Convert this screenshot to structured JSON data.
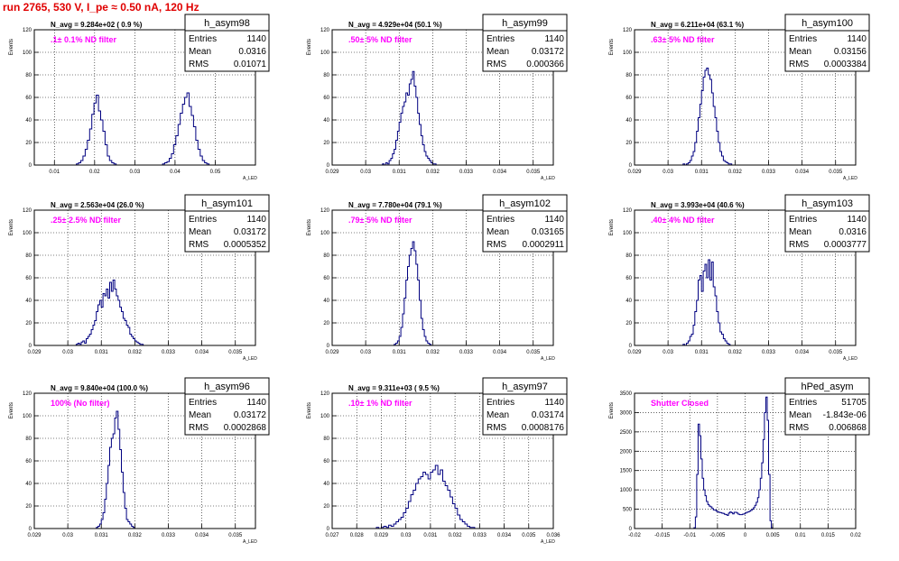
{
  "title": "run 2765,   530 V, I_pe ≈ 0.50 nA, 120 Hz",
  "colors": {
    "hist": "#000080",
    "filter_label": "#ff00ff",
    "title": "#e00000",
    "grid": "#000000"
  },
  "chart_data": [
    {
      "type": "bar",
      "hist_name": "h_asym98",
      "navg": "N_avg = 9.284e+02 ( 0.9 %)",
      "filter": ".1± 0.1% ND filter",
      "stats": {
        "entries": "1140",
        "mean": "0.0316",
        "rms": "0.01071"
      },
      "ylabel": "Events",
      "xlabel": "A_LED",
      "xlim": [
        0.005,
        0.06
      ],
      "ylim": [
        0,
        120
      ],
      "xticks": [
        "0.01",
        "0.02",
        "0.03",
        "0.04",
        "0.05"
      ],
      "xtick_values": [
        0.01,
        0.02,
        0.03,
        0.04,
        0.05
      ],
      "yticks": [
        "0",
        "20",
        "40",
        "60",
        "80",
        "100",
        "120"
      ],
      "bins": {
        "start": 0.005,
        "width": 0.00055,
        "values": [
          0,
          0,
          0,
          0,
          0,
          0,
          0,
          0,
          0,
          0,
          0,
          0,
          0,
          0,
          0,
          0,
          0,
          0,
          0,
          1,
          2,
          4,
          8,
          14,
          22,
          32,
          45,
          55,
          62,
          48,
          40,
          30,
          18,
          8,
          4,
          2,
          1,
          0,
          0,
          0,
          0,
          0,
          0,
          0,
          0,
          0,
          0,
          0,
          0,
          0,
          0,
          0,
          0,
          0,
          0,
          0,
          0,
          0,
          1,
          2,
          3,
          6,
          10,
          18,
          26,
          36,
          46,
          54,
          60,
          64,
          52,
          44,
          34,
          22,
          14,
          8,
          4,
          2,
          1,
          0,
          0,
          0,
          0,
          0,
          0,
          0,
          0,
          0,
          0,
          0,
          0,
          0,
          0,
          0,
          0,
          0,
          0,
          0,
          0,
          0
        ]
      }
    },
    {
      "type": "bar",
      "hist_name": "h_asym99",
      "navg": "N_avg = 4.929e+04 (50.1 %)",
      "filter": ".50± 5% ND filter",
      "stats": {
        "entries": "1140",
        "mean": "0.03172",
        "rms": "0.000366"
      },
      "ylabel": "Events",
      "xlabel": "A_LED",
      "xlim": [
        0.029,
        0.0356
      ],
      "ylim": [
        0,
        120
      ],
      "xticks": [
        "0.029",
        "0.03",
        "0.031",
        "0.032",
        "0.033",
        "0.034",
        "0.035"
      ],
      "xtick_values": [
        0.029,
        0.03,
        0.031,
        0.032,
        0.033,
        0.034,
        0.035
      ],
      "yticks": [
        "0",
        "20",
        "40",
        "60",
        "80",
        "100",
        "120"
      ],
      "bins": {
        "start": 0.0304,
        "width": 5e-05,
        "values": [
          0,
          0,
          1,
          0,
          2,
          1,
          4,
          6,
          10,
          14,
          22,
          30,
          38,
          46,
          52,
          56,
          64,
          62,
          72,
          76,
          83,
          70,
          60,
          46,
          36,
          26,
          18,
          12,
          8,
          6,
          4,
          2,
          1,
          1,
          0,
          0,
          0,
          0,
          0,
          0
        ]
      }
    },
    {
      "type": "bar",
      "hist_name": "h_asym100",
      "navg": "N_avg = 6.211e+04 (63.1 %)",
      "filter": ".63± 5% ND filter",
      "stats": {
        "entries": "1140",
        "mean": "0.03156",
        "rms": "0.0003384"
      },
      "ylabel": "Events",
      "xlabel": "A_LED",
      "xlim": [
        0.029,
        0.0356
      ],
      "ylim": [
        0,
        120
      ],
      "xticks": [
        "0.029",
        "0.03",
        "0.031",
        "0.032",
        "0.033",
        "0.034",
        "0.035"
      ],
      "xtick_values": [
        0.029,
        0.03,
        0.031,
        0.032,
        0.033,
        0.034,
        0.035
      ],
      "yticks": [
        "0",
        "20",
        "40",
        "60",
        "80",
        "100",
        "120"
      ],
      "bins": {
        "start": 0.0304,
        "width": 5e-05,
        "values": [
          0,
          1,
          0,
          1,
          2,
          4,
          8,
          12,
          20,
          30,
          42,
          54,
          66,
          78,
          84,
          86,
          80,
          76,
          64,
          52,
          42,
          30,
          20,
          12,
          8,
          4,
          3,
          2,
          1,
          1,
          0,
          0,
          0,
          0,
          0,
          0,
          0,
          0
        ]
      }
    },
    {
      "type": "bar",
      "hist_name": "h_asym101",
      "navg": "N_avg = 2.563e+04 (26.0 %)",
      "filter": ".25± 2.5% ND filter",
      "stats": {
        "entries": "1140",
        "mean": "0.03172",
        "rms": "0.0005352"
      },
      "ylabel": "Events",
      "xlabel": "A_LED",
      "xlim": [
        0.029,
        0.0356
      ],
      "ylim": [
        0,
        120
      ],
      "xticks": [
        "0.029",
        "0.03",
        "0.031",
        "0.032",
        "0.033",
        "0.034",
        "0.035"
      ],
      "xtick_values": [
        0.029,
        0.03,
        0.031,
        0.032,
        0.033,
        0.034,
        0.035
      ],
      "yticks": [
        "0",
        "20",
        "40",
        "60",
        "80",
        "100",
        "120"
      ],
      "bins": {
        "start": 0.0302,
        "width": 5e-05,
        "values": [
          0,
          1,
          2,
          1,
          3,
          4,
          2,
          6,
          8,
          10,
          14,
          18,
          22,
          30,
          36,
          40,
          34,
          46,
          44,
          50,
          42,
          56,
          48,
          58,
          50,
          44,
          40,
          34,
          30,
          24,
          22,
          18,
          16,
          10,
          8,
          6,
          4,
          3,
          2,
          1,
          1,
          0,
          0,
          0
        ]
      }
    },
    {
      "type": "bar",
      "hist_name": "h_asym102",
      "navg": "N_avg = 7.780e+04 (79.1 %)",
      "filter": ".79± 5% ND filter",
      "stats": {
        "entries": "1140",
        "mean": "0.03165",
        "rms": "0.0002911"
      },
      "ylabel": "Events",
      "xlabel": "A_LED",
      "xlim": [
        0.029,
        0.0356
      ],
      "ylim": [
        0,
        120
      ],
      "xticks": [
        "0.029",
        "0.03",
        "0.031",
        "0.032",
        "0.033",
        "0.034",
        "0.035"
      ],
      "xtick_values": [
        0.029,
        0.03,
        0.031,
        0.032,
        0.033,
        0.034,
        0.035
      ],
      "yticks": [
        "0",
        "20",
        "40",
        "60",
        "80",
        "100",
        "120"
      ],
      "bins": {
        "start": 0.0308,
        "width": 5e-05,
        "values": [
          0,
          1,
          2,
          4,
          8,
          16,
          28,
          42,
          58,
          70,
          80,
          86,
          92,
          84,
          72,
          58,
          40,
          24,
          14,
          8,
          4,
          2,
          1,
          0,
          0,
          0
        ]
      }
    },
    {
      "type": "bar",
      "hist_name": "h_asym103",
      "navg": "N_avg = 3.993e+04 (40.6 %)",
      "filter": ".40± 4% ND filter",
      "stats": {
        "entries": "1140",
        "mean": "0.0316",
        "rms": "0.0003777"
      },
      "ylabel": "Events",
      "xlabel": "A_LED",
      "xlim": [
        0.029,
        0.0356
      ],
      "ylim": [
        0,
        120
      ],
      "xticks": [
        "0.029",
        "0.03",
        "0.031",
        "0.032",
        "0.033",
        "0.034",
        "0.035"
      ],
      "xtick_values": [
        0.029,
        0.03,
        0.031,
        0.032,
        0.033,
        0.034,
        0.035
      ],
      "yticks": [
        "0",
        "20",
        "40",
        "60",
        "80",
        "100",
        "120"
      ],
      "bins": {
        "start": 0.0304,
        "width": 5e-05,
        "values": [
          0,
          1,
          0,
          2,
          4,
          8,
          10,
          18,
          30,
          40,
          58,
          62,
          48,
          66,
          72,
          60,
          76,
          58,
          74,
          52,
          44,
          30,
          20,
          12,
          10,
          6,
          4,
          2,
          1,
          0,
          0,
          0,
          0
        ]
      }
    },
    {
      "type": "bar",
      "hist_name": "h_asym96",
      "navg": "N_avg = 9.840e+04 (100.0 %)",
      "filter": "100% (No filter)",
      "stats": {
        "entries": "1140",
        "mean": "0.03172",
        "rms": "0.0002868"
      },
      "ylabel": "Events",
      "xlabel": "A_LED",
      "xlim": [
        0.029,
        0.0356
      ],
      "ylim": [
        0,
        120
      ],
      "xticks": [
        "0.029",
        "0.03",
        "0.031",
        "0.032",
        "0.033",
        "0.034",
        "0.035"
      ],
      "xtick_values": [
        0.029,
        0.03,
        0.031,
        0.032,
        0.033,
        0.034,
        0.035
      ],
      "yticks": [
        "0",
        "20",
        "40",
        "60",
        "80",
        "100",
        "120"
      ],
      "bins": {
        "start": 0.0308,
        "width": 5e-05,
        "values": [
          0,
          1,
          2,
          4,
          8,
          14,
          26,
          40,
          56,
          72,
          80,
          84,
          98,
          104,
          88,
          70,
          50,
          32,
          18,
          8,
          6,
          4,
          2,
          1,
          0,
          0
        ]
      }
    },
    {
      "type": "bar",
      "hist_name": "h_asym97",
      "navg": "N_avg = 9.311e+03 ( 9.5 %)",
      "filter": ".10± 1% ND filter",
      "stats": {
        "entries": "1140",
        "mean": "0.03174",
        "rms": "0.0008176"
      },
      "ylabel": "Events",
      "xlabel": "A_LED",
      "xlim": [
        0.027,
        0.036
      ],
      "ylim": [
        0,
        120
      ],
      "xticks": [
        "0.027",
        "0.028",
        "0.029",
        "0.03",
        "0.031",
        "0.032",
        "0.033",
        "0.034",
        "0.035",
        "0.036"
      ],
      "xtick_values": [
        0.027,
        0.028,
        0.029,
        0.03,
        0.031,
        0.032,
        0.033,
        0.034,
        0.035,
        0.036
      ],
      "yticks": [
        "0",
        "20",
        "40",
        "60",
        "80",
        "100",
        "120"
      ],
      "bins": {
        "start": 0.0288,
        "width": 0.0001,
        "values": [
          1,
          0,
          1,
          2,
          1,
          3,
          2,
          4,
          6,
          8,
          10,
          14,
          18,
          24,
          30,
          34,
          40,
          44,
          46,
          50,
          48,
          44,
          50,
          52,
          56,
          48,
          52,
          42,
          38,
          34,
          28,
          22,
          18,
          12,
          8,
          6,
          4,
          2,
          1,
          1,
          0
        ]
      }
    },
    {
      "type": "bar",
      "hist_name": "hPed_asym",
      "navg": "",
      "filter": "Shutter Closed",
      "stats": {
        "entries": "51705",
        "mean": "-1.843e-06",
        "rms": "0.006868"
      },
      "ylabel": "Events",
      "xlabel": "",
      "xlim": [
        -0.02,
        0.02
      ],
      "ylim": [
        0,
        3500
      ],
      "xticks": [
        "-0.02",
        "-0.015",
        "-0.01",
        "-0.005",
        "0",
        "0.005",
        "0.01",
        "0.015",
        "0.02"
      ],
      "xtick_values": [
        -0.02,
        -0.015,
        -0.01,
        -0.005,
        0,
        0.005,
        0.01,
        0.015,
        0.02
      ],
      "yticks": [
        "0",
        "500",
        "1000",
        "1500",
        "2000",
        "2500",
        "3000",
        "3500"
      ],
      "bins": {
        "start": -0.012,
        "width": 0.00025,
        "values": [
          0,
          0,
          0,
          0,
          0,
          0,
          0,
          0,
          0,
          0,
          0,
          20,
          300,
          1400,
          2700,
          2400,
          1800,
          1300,
          1000,
          850,
          700,
          620,
          580,
          560,
          520,
          480,
          480,
          450,
          430,
          420,
          410,
          400,
          390,
          370,
          360,
          340,
          400,
          430,
          410,
          380,
          420,
          420,
          400,
          370,
          360,
          360,
          370,
          380,
          400,
          420,
          430,
          450,
          470,
          500,
          540,
          600,
          680,
          800,
          1000,
          1300,
          1700,
          2300,
          3000,
          3400,
          2800,
          1400,
          200,
          20,
          0,
          0,
          0,
          0,
          0,
          0,
          0,
          0,
          0,
          0,
          0,
          0,
          0,
          0,
          0,
          0,
          0,
          0,
          0,
          0,
          0,
          0,
          0,
          0,
          0,
          0,
          0,
          0
        ]
      }
    }
  ]
}
